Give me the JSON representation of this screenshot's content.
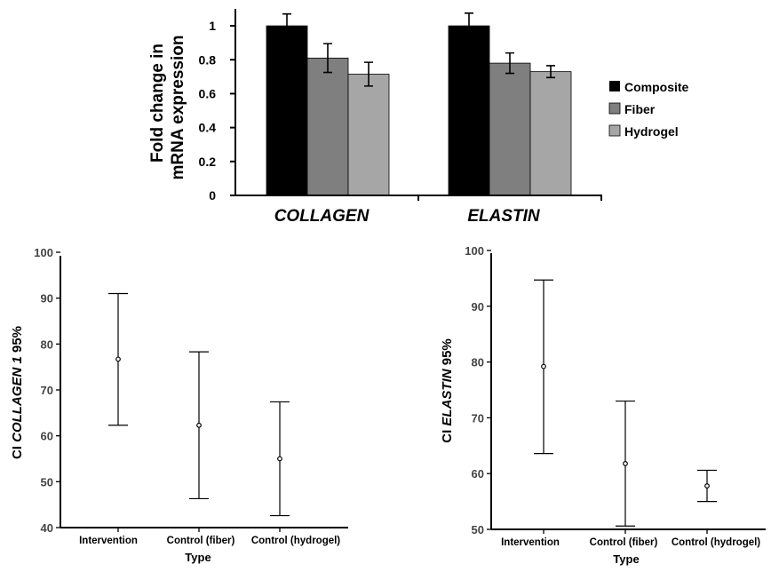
{
  "chart_data": [
    {
      "type": "bar",
      "ylabel_line1": "Fold change in",
      "ylabel_line2": "mRNA expression",
      "categories": [
        "COLLAGEN",
        "ELASTIN"
      ],
      "ylim": [
        0,
        1.1
      ],
      "yticks": [
        "0",
        "0.2",
        "0.4",
        "0.6",
        "0.8",
        "1"
      ],
      "legend_position": "right",
      "series": [
        {
          "name": "Composite",
          "color": "#000000",
          "values": [
            1.0,
            1.0
          ],
          "errors": [
            0.07,
            0.075
          ]
        },
        {
          "name": "Fiber",
          "color": "#7f7f7f",
          "values": [
            0.81,
            0.78
          ],
          "errors": [
            0.085,
            0.06
          ]
        },
        {
          "name": "Hydrogel",
          "color": "#a6a6a6",
          "values": [
            0.715,
            0.73
          ],
          "errors": [
            0.07,
            0.035
          ]
        }
      ]
    },
    {
      "type": "errorbar",
      "ylabel_prefix": "CI ",
      "ylabel_italic": "COLLAGEN 1",
      "ylabel_suffix": " 95%",
      "xlabel": "Type",
      "categories": [
        "Intervention",
        "Control (fiber)",
        "Control (hydrogel)"
      ],
      "ylim": [
        40,
        100
      ],
      "yticks": [
        "40",
        "50",
        "60",
        "70",
        "80",
        "90",
        "100"
      ],
      "points": [
        {
          "mean": 76.7,
          "lower": 62.3,
          "upper": 91.0
        },
        {
          "mean": 62.3,
          "lower": 46.3,
          "upper": 78.3
        },
        {
          "mean": 55.0,
          "lower": 42.6,
          "upper": 67.4
        }
      ]
    },
    {
      "type": "errorbar",
      "ylabel_prefix": "CI ",
      "ylabel_italic": "ELASTIN",
      "ylabel_suffix": " 95%",
      "xlabel": "Type",
      "categories": [
        "Intervention",
        "Control (fiber)",
        "Control (hydrogel)"
      ],
      "ylim": [
        50,
        100
      ],
      "yticks": [
        "50",
        "60",
        "70",
        "80",
        "90",
        "100"
      ],
      "points": [
        {
          "mean": 79.2,
          "lower": 63.6,
          "upper": 94.7
        },
        {
          "mean": 61.8,
          "lower": 50.6,
          "upper": 73.0
        },
        {
          "mean": 57.8,
          "lower": 55.0,
          "upper": 60.6
        }
      ]
    }
  ]
}
